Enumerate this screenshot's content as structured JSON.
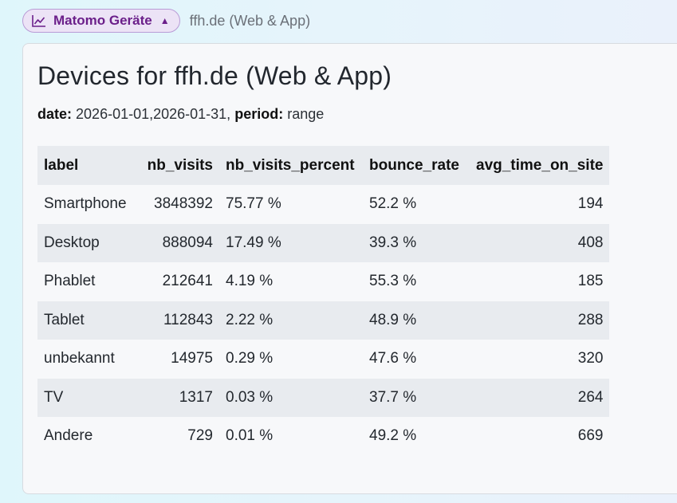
{
  "header": {
    "chip_label": "Matomo Geräte",
    "chip_icon": "line-chart-icon",
    "chip_caret_icon": "caret-up-icon",
    "site_name": "ffh.de (Web & App)"
  },
  "card": {
    "title": "Devices for ffh.de (Web & App)",
    "date_key": "date:",
    "date_value": "2026-01-01,2026-01-31,",
    "period_key": "period:",
    "period_value": "range"
  },
  "table": {
    "columns": [
      "label",
      "nb_visits",
      "nb_visits_percent",
      "bounce_rate",
      "avg_time_on_site"
    ],
    "rows": [
      [
        "Smartphone",
        "3848392",
        "75.77 %",
        "52.2 %",
        "194"
      ],
      [
        "Desktop",
        "888094",
        "17.49 %",
        "39.3 %",
        "408"
      ],
      [
        "Phablet",
        "212641",
        "4.19 %",
        "55.3 %",
        "185"
      ],
      [
        "Tablet",
        "112843",
        "2.22 %",
        "48.9 %",
        "288"
      ],
      [
        "unbekannt",
        "14975",
        "0.29 %",
        "47.6 %",
        "320"
      ],
      [
        "TV",
        "1317",
        "0.03 %",
        "37.7 %",
        "264"
      ],
      [
        "Andere",
        "729",
        "0.01 %",
        "49.2 %",
        "669"
      ]
    ]
  },
  "colors": {
    "chip_text": "#6b1f8a",
    "chip_bg": "#ece3f6",
    "stripe": "#e8ebef"
  }
}
